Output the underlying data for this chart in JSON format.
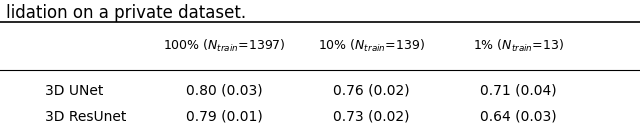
{
  "caption": "lidation on a private dataset.",
  "col_headers": [
    "100% ($N_{train}$=1397)",
    "10% ($N_{train}$=139)",
    "1% ($N_{train}$=13)"
  ],
  "row_labels": [
    "3D UNet",
    "3D ResUnet"
  ],
  "table_data": [
    [
      "0.80 (0.03)",
      "0.76 (0.02)",
      "0.71 (0.04)"
    ],
    [
      "0.79 (0.01)",
      "0.73 (0.02)",
      "0.64 (0.03)"
    ]
  ],
  "bg_color": "#ffffff",
  "text_color": "#000000",
  "font_size": 10,
  "caption_font_size": 12
}
